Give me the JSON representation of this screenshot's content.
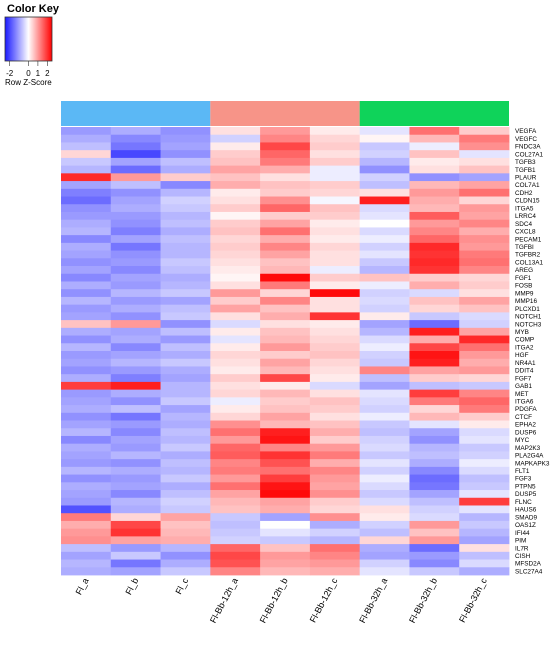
{
  "chart_data": {
    "type": "heatmap",
    "title": "Color Key",
    "scale_label": "Row Z-Score",
    "scale_ticks": [
      "-2",
      "0",
      "1",
      "2"
    ],
    "scale_tick_values": [
      -2,
      0,
      1,
      2
    ],
    "scale_range": [
      -2.5,
      2.5
    ],
    "colors": {
      "low": "#1a1aff",
      "mid": "#ffffff",
      "high": "#ff0000"
    },
    "groups": [
      {
        "label": "",
        "color": "#5bb8f5",
        "columns": [
          0,
          1,
          2
        ]
      },
      {
        "label": "",
        "color": "#f79488",
        "columns": [
          3,
          4,
          5
        ]
      },
      {
        "label": "",
        "color": "#0fd35a",
        "columns": [
          6,
          7,
          8
        ]
      }
    ],
    "columns": [
      "Fl_a",
      "Fl_b",
      "Fl_c",
      "Fl-Bb-12h_a",
      "Fl-Bb-12h_b",
      "Fl-Bb-12h_c",
      "Fl-Bb-32h_a",
      "Fl-Bb-32h_b",
      "Fl-Bb-32h_c"
    ],
    "rows": [
      "VEGFA",
      "VEGFC",
      "FNDC3A",
      "COL27A1",
      "TGFB3",
      "TGFB1",
      "PLAUR",
      "COL7A1",
      "CDH2",
      "CLDN15",
      "ITGA5",
      "LRRC4",
      "SDC4",
      "CXCL8",
      "PECAM1",
      "TGFBI",
      "TGFBR2",
      "COL13A1",
      "AREG",
      "FGF1",
      "FOSB",
      "MMP9",
      "MMP16",
      "PLCXD1",
      "NOTCH1",
      "NOTCH3",
      "MYB",
      "COMP",
      "ITGA2",
      "HGF",
      "NR4A1",
      "DDIT4",
      "FGF7",
      "GAB1",
      "MET",
      "ITGA6",
      "PDGFA",
      "CTCF",
      "EPHA2",
      "DUSP6",
      "MYC",
      "MAP2K3",
      "PLA2G4A",
      "MAPKAPK3",
      "FLT1",
      "FGF3",
      "PTPN5",
      "DUSP5",
      "FLNC",
      "HAUS6",
      "SMAD9",
      "OAS1Z",
      "IFI44",
      "PIM",
      "IL7R",
      "CISH",
      "MFSD2A",
      "SLC27A4"
    ],
    "values": [
      [
        -1.1,
        -0.9,
        -1.2,
        0.3,
        1.0,
        0.2,
        -0.3,
        1.4,
        0.5
      ],
      [
        -0.9,
        -1.3,
        -1.1,
        -0.5,
        1.2,
        0.4,
        0.1,
        0.7,
        1.3
      ],
      [
        -0.7,
        -1.5,
        -1.0,
        0.2,
        1.8,
        0.5,
        -0.6,
        -0.2,
        1.1
      ],
      [
        0.4,
        -2.0,
        -1.2,
        0.5,
        1.5,
        0.3,
        -0.5,
        0.6,
        -0.3
      ],
      [
        -0.6,
        -1.0,
        -0.7,
        0.6,
        1.3,
        0.5,
        -0.8,
        0.2,
        0.3
      ],
      [
        -0.8,
        -1.6,
        -0.9,
        0.9,
        0.8,
        -0.2,
        -1.2,
        0.3,
        0.6
      ],
      [
        2.1,
        1.0,
        0.5,
        0.6,
        0.3,
        -0.2,
        -0.5,
        -1.2,
        -1.0
      ],
      [
        -1.0,
        -0.7,
        -1.3,
        0.8,
        0.6,
        0.5,
        -0.7,
        0.7,
        0.9
      ],
      [
        -1.4,
        -1.2,
        -0.8,
        0.2,
        0.5,
        0.4,
        0.3,
        1.0,
        1.4
      ],
      [
        -1.6,
        -1.0,
        -0.5,
        0.3,
        1.1,
        -0.1,
        2.2,
        0.8,
        0.4
      ],
      [
        -1.2,
        -0.9,
        -0.6,
        0.5,
        1.5,
        0.6,
        -0.4,
        0.7,
        1.0
      ],
      [
        -1.1,
        -1.1,
        -0.8,
        0.1,
        0.5,
        0.5,
        -0.3,
        1.6,
        0.9
      ],
      [
        -0.9,
        -1.2,
        -0.7,
        0.5,
        0.9,
        0.2,
        0.0,
        1.0,
        1.2
      ],
      [
        -0.8,
        -1.4,
        -0.9,
        0.6,
        1.4,
        0.3,
        -0.4,
        1.2,
        0.8
      ],
      [
        -1.3,
        -1.0,
        -0.7,
        0.4,
        0.8,
        0.2,
        -0.2,
        1.5,
        1.1
      ],
      [
        -0.9,
        -1.5,
        -0.8,
        0.5,
        1.2,
        0.4,
        -0.5,
        2.1,
        1.0
      ],
      [
        -1.0,
        -1.2,
        -0.8,
        0.4,
        0.9,
        0.3,
        -0.3,
        2.0,
        1.3
      ],
      [
        -1.2,
        -1.1,
        -0.6,
        0.3,
        0.6,
        0.3,
        -0.6,
        2.1,
        1.4
      ],
      [
        -1.0,
        -1.3,
        -0.7,
        0.2,
        0.7,
        -0.2,
        -0.8,
        2.0,
        1.2
      ],
      [
        -1.3,
        -1.0,
        -0.9,
        0.1,
        2.4,
        0.5,
        0.6,
        0.5,
        0.4
      ],
      [
        -0.9,
        -1.1,
        -0.8,
        0.3,
        1.3,
        0.2,
        -0.2,
        0.8,
        0.5
      ],
      [
        -1.2,
        -0.8,
        -0.6,
        1.0,
        0.4,
        2.4,
        -0.5,
        -0.4,
        0.3
      ],
      [
        -0.8,
        -1.1,
        -1.0,
        0.5,
        1.2,
        0.3,
        -0.4,
        0.6,
        0.9
      ],
      [
        -1.1,
        -0.9,
        -0.7,
        0.9,
        0.6,
        0.3,
        -0.5,
        0.4,
        0.6
      ],
      [
        -1.0,
        -1.2,
        -0.6,
        0.3,
        0.8,
        2.0,
        0.2,
        -0.6,
        -0.4
      ],
      [
        0.6,
        1.0,
        -1.2,
        -0.4,
        0.3,
        0.2,
        -1.0,
        -1.6,
        -0.5
      ],
      [
        -0.9,
        -1.0,
        -0.7,
        0.2,
        0.6,
        0.3,
        -0.8,
        2.2,
        0.9
      ],
      [
        -1.2,
        -0.9,
        -1.1,
        -0.3,
        0.7,
        0.4,
        -0.4,
        0.8,
        2.1
      ],
      [
        -0.8,
        -1.3,
        -0.7,
        0.2,
        1.0,
        0.5,
        -0.2,
        1.8,
        1.4
      ],
      [
        -1.1,
        -1.0,
        -0.9,
        0.4,
        0.5,
        0.6,
        -0.5,
        2.3,
        1.0
      ],
      [
        -1.0,
        -0.8,
        -0.6,
        0.3,
        0.9,
        0.4,
        -0.6,
        2.2,
        0.8
      ],
      [
        -1.2,
        -1.1,
        -0.9,
        0.2,
        0.7,
        0.3,
        1.2,
        0.9,
        1.0
      ],
      [
        -0.9,
        -1.4,
        -1.0,
        0.5,
        1.8,
        0.2,
        -0.7,
        0.5,
        0.4
      ],
      [
        1.9,
        2.2,
        -0.8,
        0.3,
        0.2,
        -0.4,
        -1.0,
        -0.7,
        -0.6
      ],
      [
        -1.1,
        -0.9,
        -0.8,
        0.4,
        0.7,
        0.3,
        -0.3,
        1.9,
        1.2
      ],
      [
        -1.0,
        -1.2,
        -0.6,
        -0.2,
        0.5,
        0.6,
        -0.4,
        1.3,
        1.5
      ],
      [
        -0.9,
        -0.7,
        -1.0,
        0.2,
        0.6,
        0.5,
        -0.5,
        0.4,
        1.3
      ],
      [
        -1.2,
        -1.5,
        -0.8,
        0.4,
        0.9,
        0.3,
        -0.2,
        0.7,
        0.5
      ],
      [
        -1.0,
        -1.1,
        -0.9,
        1.1,
        0.7,
        0.6,
        -0.6,
        -0.3,
        0.2
      ],
      [
        -0.8,
        -1.3,
        -0.7,
        1.4,
        2.2,
        0.8,
        -0.7,
        -1.0,
        -0.4
      ],
      [
        -1.3,
        -1.0,
        -0.8,
        1.0,
        2.3,
        0.5,
        -0.5,
        -1.2,
        -0.3
      ],
      [
        -0.9,
        -1.1,
        -0.6,
        1.5,
        1.2,
        1.0,
        -0.4,
        -0.8,
        -0.6
      ],
      [
        -1.0,
        -0.8,
        -0.9,
        1.6,
        2.0,
        1.3,
        -0.6,
        -0.7,
        -0.5
      ],
      [
        -1.1,
        -1.2,
        -0.7,
        1.2,
        1.7,
        0.8,
        -0.3,
        -0.9,
        -0.2
      ],
      [
        -0.8,
        -0.9,
        -0.8,
        1.3,
        1.4,
        1.2,
        -0.5,
        -1.3,
        -0.4
      ],
      [
        -1.2,
        -1.1,
        -0.6,
        1.0,
        1.9,
        1.0,
        -0.2,
        -1.6,
        -0.7
      ],
      [
        -0.9,
        -1.0,
        -0.9,
        1.4,
        2.3,
        0.9,
        -0.4,
        -1.5,
        -0.6
      ],
      [
        -1.0,
        -1.3,
        -0.7,
        0.9,
        2.4,
        1.1,
        -0.6,
        -1.0,
        -0.3
      ],
      [
        -1.1,
        -0.8,
        -0.5,
        0.7,
        0.9,
        0.5,
        -0.4,
        -0.7,
        1.9
      ],
      [
        -1.9,
        -0.9,
        -0.6,
        0.6,
        0.8,
        0.4,
        0.3,
        -0.5,
        -0.3
      ],
      [
        1.3,
        0.4,
        0.9,
        -0.6,
        -1.0,
        1.1,
        0.2,
        -0.4,
        -0.8
      ],
      [
        0.8,
        1.8,
        0.6,
        -0.7,
        0.0,
        -0.9,
        -0.5,
        1.0,
        -0.6
      ],
      [
        1.0,
        2.0,
        0.7,
        -0.6,
        -0.3,
        -0.5,
        -0.7,
        0.6,
        -0.8
      ],
      [
        1.1,
        0.9,
        0.8,
        -0.5,
        -0.6,
        -0.8,
        0.4,
        1.0,
        -1.0
      ],
      [
        -0.7,
        -1.1,
        -0.8,
        1.5,
        0.6,
        1.4,
        -0.9,
        -1.6,
        0.3
      ],
      [
        -1.0,
        -0.6,
        -1.2,
        1.8,
        1.0,
        1.2,
        -1.0,
        -1.1,
        -0.7
      ],
      [
        -0.8,
        -1.5,
        -0.9,
        1.7,
        0.9,
        1.0,
        -0.5,
        -1.3,
        -0.4
      ],
      [
        -0.9,
        -1.0,
        -0.6,
        1.2,
        0.7,
        0.8,
        -0.3,
        -0.6,
        -0.9
      ]
    ]
  }
}
